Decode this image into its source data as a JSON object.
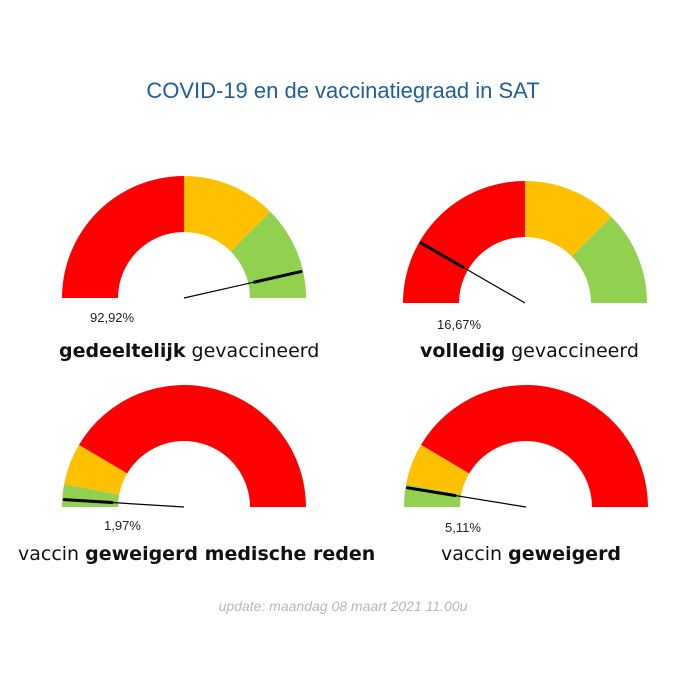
{
  "title": "COVID-19 en de vaccinatiegraad in SAT",
  "update": "update: maandag 08 maart 2021 11.00u",
  "colors": {
    "red": "#ff0000",
    "yellow": "#ffc000",
    "green": "#92d050",
    "title": "#1f5f9c",
    "needle": "#000000"
  },
  "gauges": [
    {
      "value_label": "92,92%",
      "caption_bold": "gedeeltelijk",
      "caption_rest": " gevaccineerd",
      "caption_order": "bold-first"
    },
    {
      "value_label": "16,67%",
      "caption_bold": "volledig",
      "caption_rest": " gevaccineerd",
      "caption_order": "bold-first"
    },
    {
      "value_label": "1,97%",
      "caption_prefix": "vaccin ",
      "caption_bold": "geweigerd medische reden",
      "caption_order": "prefix-first"
    },
    {
      "value_label": "5,11%",
      "caption_prefix": "vaccin ",
      "caption_bold": "geweigerd",
      "caption_order": "prefix-first"
    }
  ],
  "chart_data": [
    {
      "type": "gauge",
      "value": 92.92,
      "range": [
        0,
        100
      ],
      "bands": [
        {
          "color": "red",
          "from": 0,
          "to": 50
        },
        {
          "color": "yellow",
          "from": 50,
          "to": 75
        },
        {
          "color": "green",
          "from": 75,
          "to": 100
        }
      ]
    },
    {
      "type": "gauge",
      "value": 16.67,
      "range": [
        0,
        100
      ],
      "bands": [
        {
          "color": "red",
          "from": 0,
          "to": 50
        },
        {
          "color": "yellow",
          "from": 50,
          "to": 75
        },
        {
          "color": "green",
          "from": 75,
          "to": 100
        }
      ]
    },
    {
      "type": "gauge",
      "value": 1.97,
      "range": [
        0,
        100
      ],
      "bands": [
        {
          "color": "green",
          "from": 0,
          "to": 6
        },
        {
          "color": "yellow",
          "from": 6,
          "to": 17
        },
        {
          "color": "red",
          "from": 17,
          "to": 100
        }
      ]
    },
    {
      "type": "gauge",
      "value": 5.11,
      "range": [
        0,
        100
      ],
      "bands": [
        {
          "color": "green",
          "from": 0,
          "to": 6
        },
        {
          "color": "yellow",
          "from": 6,
          "to": 17
        },
        {
          "color": "red",
          "from": 17,
          "to": 100
        }
      ]
    }
  ]
}
